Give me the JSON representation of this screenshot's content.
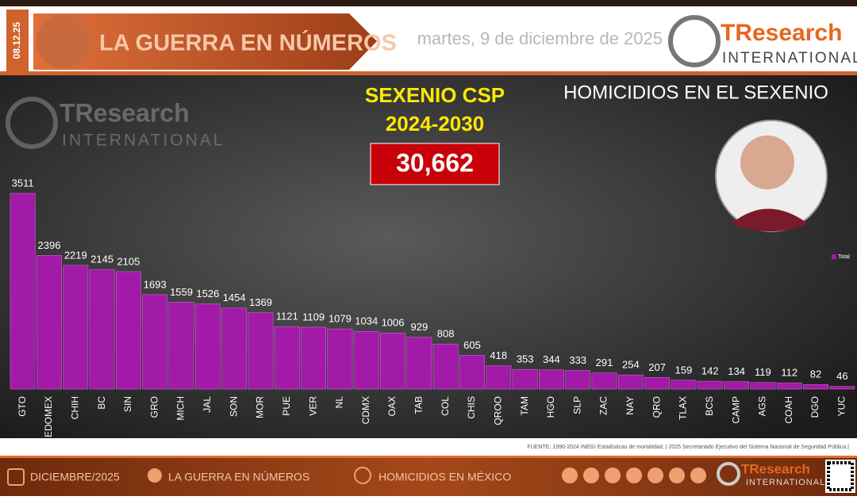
{
  "header": {
    "date_code": "08.12.25",
    "banner": "LA GUERRA EN NÚMEROS",
    "date": "martes, 9 de diciembre de 2025",
    "logo_name": "TResearch",
    "logo_sub": "INTERNATIONAL"
  },
  "summary": {
    "label": "SEXENIO CSP",
    "period": "2024-2030",
    "total": "30,662"
  },
  "watermark": {
    "logo_name": "TResearch",
    "logo_sub": "INTERNATIONAL"
  },
  "chart_data": {
    "type": "bar",
    "title": "HOMICIDIOS EN EL SEXENIO",
    "categories": [
      "GTO",
      "EDOMEX",
      "CHIH",
      "BC",
      "SIN",
      "GRO",
      "MICH",
      "JAL",
      "SON",
      "MOR",
      "PUE",
      "VER",
      "NL",
      "CDMX",
      "OAX",
      "TAB",
      "COL",
      "CHIS",
      "QROO",
      "TAM",
      "HGO",
      "SLP",
      "ZAC",
      "NAY",
      "QRO",
      "TLAX",
      "BCS",
      "CAMP",
      "AGS",
      "COAH",
      "DGO",
      "YUC"
    ],
    "series": [
      {
        "name": "Total",
        "color": "#a21aa8",
        "values": [
          3511,
          2396,
          2219,
          2145,
          2105,
          1693,
          1559,
          1526,
          1454,
          1369,
          1121,
          1109,
          1079,
          1034,
          1006,
          929,
          808,
          605,
          418,
          353,
          344,
          333,
          291,
          254,
          207,
          159,
          142,
          134,
          119,
          112,
          82,
          46
        ]
      }
    ],
    "source": "FUENTE: 1990-2024 INEGI Estadísticas de mortalidad. | 2025 Secretariado Ejecutivo del Sistema Nacional de Seguridad Pública |"
  },
  "footer": {
    "items": [
      "DICIEMBRE/2025",
      "LA GUERRA EN NÚMEROS",
      "HOMICIDIOS EN MÉXICO"
    ],
    "logo_name": "TResearch",
    "logo_sub": "INTERNATIONAL"
  }
}
